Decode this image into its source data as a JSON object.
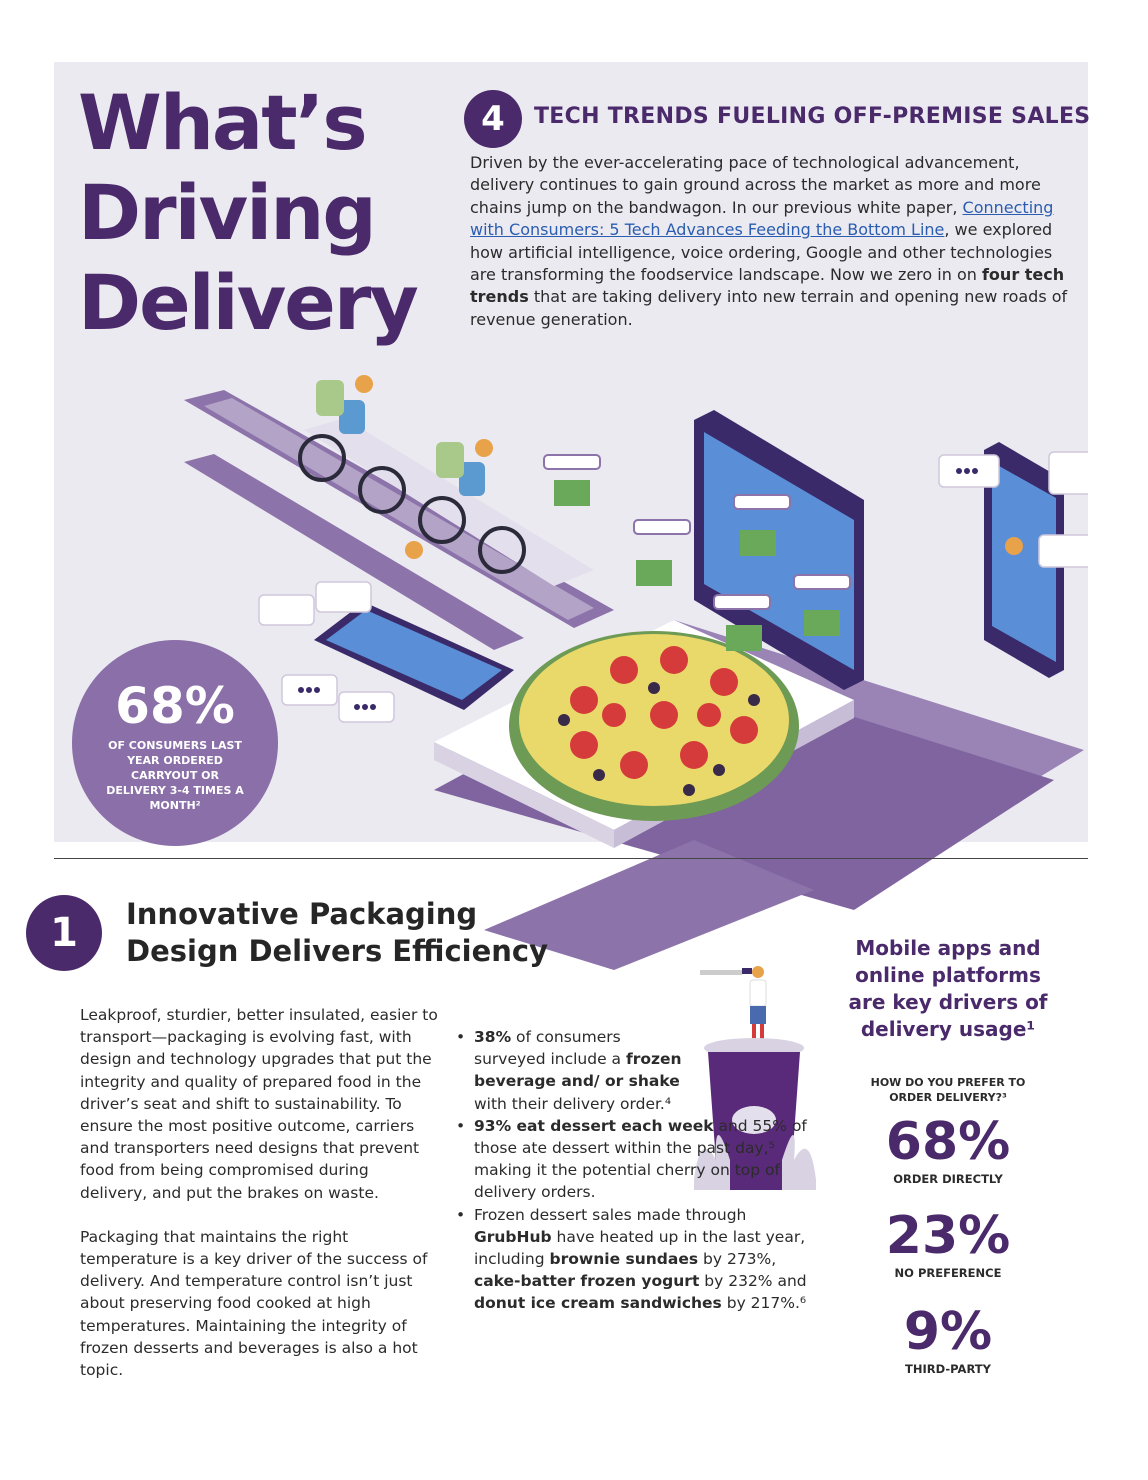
{
  "title": {
    "line1": "What’s",
    "line2": "Driving",
    "line3": "Delivery"
  },
  "trend": {
    "number": "4",
    "heading": "TECH TRENDS FUELING OFF-PREMISE SALES",
    "intro_a": "Driven by the ever-accelerating pace of technological advancement, delivery continues to gain ground across the market as more and more chains jump on the bandwagon. In our previous white paper, ",
    "intro_link": "Connecting with Consumers: 5 Tech Advances Feeding the Bottom Line",
    "intro_b": ", we explored how artificial intelligence, voice ordering, Google and other technologies are transforming the foodservice landscape. Now we zero in on ",
    "intro_bold": "four tech trends",
    "intro_c": " that are taking delivery into new terrain and opening new roads of revenue generation."
  },
  "stat": {
    "value": "68%",
    "caption": "OF CONSUMERS LAST YEAR ORDERED CARRYOUT OR DELIVERY 3-4 TIMES A MONTH²"
  },
  "section1": {
    "number": "1",
    "title_line1": "Innovative Packaging",
    "title_line2": "Design Delivers Efficiency",
    "para1": "Leakproof, sturdier, better insulated, easier to transport—packaging is evolving fast, with design and technology upgrades that put the integrity and quality of prepared food in the driver’s seat and shift to sustainability. To ensure the most positive outcome, carriers and transporters need designs that prevent food from being compromised during delivery, and put the brakes on waste.",
    "para2": "Packaging that maintains the right temperature is a key driver of the success of delivery. And temperature control isn’t just about preserving food cooked at high temperatures. Maintaining the integrity of frozen desserts and beverages is also a hot topic.",
    "b1_bold1": "38%",
    "b1_t1": " of consumers surveyed include a ",
    "b1_bold2": "frozen beverage and/ or shake",
    "b1_t2": " with their delivery order.⁴",
    "b2_bold1": "93% eat dessert each week",
    "b2_t1": " and 55% of those ate dessert within the past day,⁵ making it the potential cherry on top of delivery orders.",
    "b3_t1": "Frozen dessert sales made through ",
    "b3_bold1": "GrubHub",
    "b3_t2": " have heated up in the last year, including ",
    "b3_bold2": "brownie sundaes",
    "b3_t3": " by 273%, ",
    "b3_bold3": "cake-batter frozen yogurt",
    "b3_t4": " by 232% and ",
    "b3_bold4": "donut ice cream sandwiches",
    "b3_t5": " by 217%.⁶"
  },
  "sidebar": {
    "title": "Mobile apps and online platforms are key drivers of delivery usage¹",
    "question": "HOW DO YOU PREFER TO ORDER DELIVERY?³",
    "stats": [
      {
        "value": "68%",
        "label": "ORDER DIRECTLY"
      },
      {
        "value": "23%",
        "label": "NO PREFERENCE"
      },
      {
        "value": "9%",
        "label": "THIRD-PARTY"
      }
    ]
  },
  "colors": {
    "brand_purple": "#4a2a6a",
    "light_purple": "#8a6fa8",
    "hero_bg": "#eceaf1",
    "link": "#2a5db0"
  }
}
